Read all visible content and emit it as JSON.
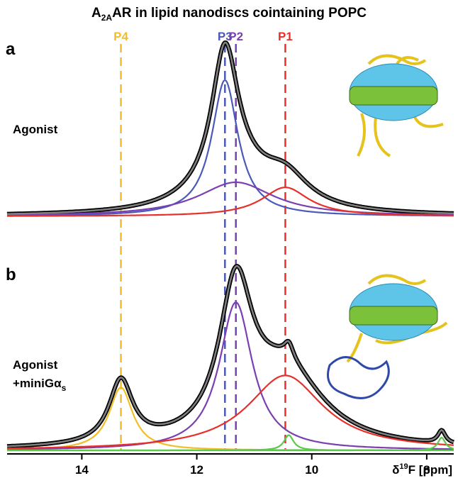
{
  "title": {
    "pre": "A",
    "sub": "2A",
    "post": "AR in lipid nanodiscs cointaining POPC"
  },
  "peaks": [
    {
      "label": "P4",
      "ppm": 13.32,
      "color": "#f2bd2a"
    },
    {
      "label": "P3",
      "ppm": 11.51,
      "color": "#4b59b8"
    },
    {
      "label": "P2",
      "ppm": 11.32,
      "color": "#7b3fb0"
    },
    {
      "label": "P1",
      "ppm": 10.46,
      "color": "#e8302a"
    }
  ],
  "chart_data": [
    {
      "type": "spectrum",
      "panel": "a",
      "label_lines": [
        "Agonist"
      ],
      "xlim": [
        15.3,
        7.53
      ],
      "ylim": [
        0,
        1
      ],
      "components": [
        {
          "color": "#4b59b8",
          "center": 11.51,
          "height": 0.8,
          "hwhm": 0.28
        },
        {
          "color": "#7b3fb0",
          "center": 11.32,
          "height": 0.2,
          "hwhm": 0.8
        },
        {
          "color": "#e8302a",
          "center": 10.46,
          "height": 0.17,
          "hwhm": 0.5
        }
      ]
    },
    {
      "type": "spectrum",
      "panel": "b",
      "label_lines": [
        "Agonist",
        "+miniGα"
      ],
      "label_sub": "s",
      "xlim": [
        15.3,
        7.53
      ],
      "ylim": [
        0,
        1
      ],
      "xticks": [
        14,
        12,
        10,
        8
      ],
      "xlabel": {
        "pre": "δ",
        "sup": "19",
        "post": "F [ppm]"
      },
      "components": [
        {
          "color": "#f2bd2a",
          "center": 13.32,
          "height": 0.37,
          "hwhm": 0.25
        },
        {
          "color": "#7b3fb0",
          "center": 11.32,
          "height": 0.87,
          "hwhm": 0.35
        },
        {
          "color": "#e8302a",
          "center": 10.46,
          "height": 0.44,
          "hwhm": 0.8
        },
        {
          "color": "#5cc94a",
          "center": 10.4,
          "height": 0.09,
          "hwhm": 0.1
        },
        {
          "color": "#5cc94a",
          "center": 7.74,
          "height": 0.075,
          "hwhm": 0.08
        }
      ]
    }
  ]
}
